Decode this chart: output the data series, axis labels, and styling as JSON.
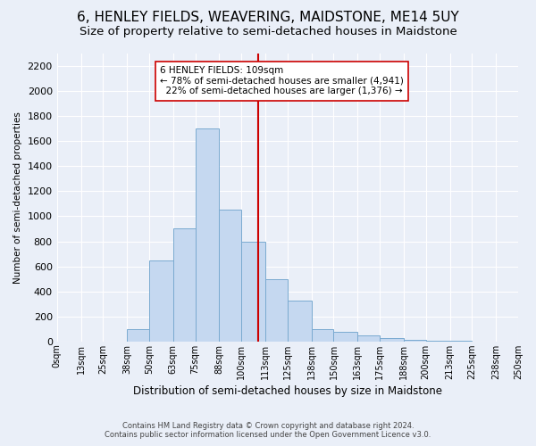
{
  "title": "6, HENLEY FIELDS, WEAVERING, MAIDSTONE, ME14 5UY",
  "subtitle": "Size of property relative to semi-detached houses in Maidstone",
  "xlabel": "Distribution of semi-detached houses by size in Maidstone",
  "ylabel": "Number of semi-detached properties",
  "footnote": "Contains HM Land Registry data © Crown copyright and database right 2024.\nContains public sector information licensed under the Open Government Licence v3.0.",
  "bar_labels": [
    "0sqm",
    "13sqm",
    "25sqm",
    "38sqm",
    "50sqm",
    "63sqm",
    "75sqm",
    "88sqm",
    "100sqm",
    "113sqm",
    "125sqm",
    "138sqm",
    "150sqm",
    "163sqm",
    "175sqm",
    "188sqm",
    "200sqm",
    "213sqm",
    "225sqm",
    "238sqm",
    "250sqm"
  ],
  "bar_values": [
    0,
    0,
    0,
    100,
    650,
    900,
    1700,
    1050,
    800,
    500,
    325,
    100,
    75,
    50,
    30,
    15,
    5,
    2,
    1,
    0,
    0
  ],
  "bar_color": "#c5d8f0",
  "bar_edge_color": "#7aaad0",
  "property_line_x": 109,
  "smaller_pct": "78%",
  "smaller_n": "4,941",
  "larger_pct": "22%",
  "larger_n": "1,376",
  "line_color": "#cc0000",
  "annotation_box_color": "#ffffff",
  "annotation_box_edge": "#cc0000",
  "ylim": [
    0,
    2300
  ],
  "yticks": [
    0,
    200,
    400,
    600,
    800,
    1000,
    1200,
    1400,
    1600,
    1800,
    2000,
    2200
  ],
  "bin_edges": [
    0,
    13,
    25,
    38,
    50,
    63,
    75,
    88,
    100,
    113,
    125,
    138,
    150,
    163,
    175,
    188,
    200,
    213,
    225,
    238,
    250
  ],
  "bg_color": "#eaeff8",
  "plot_bg_color": "#eaeff8",
  "grid_color": "#ffffff",
  "title_fontsize": 11,
  "subtitle_fontsize": 9.5
}
